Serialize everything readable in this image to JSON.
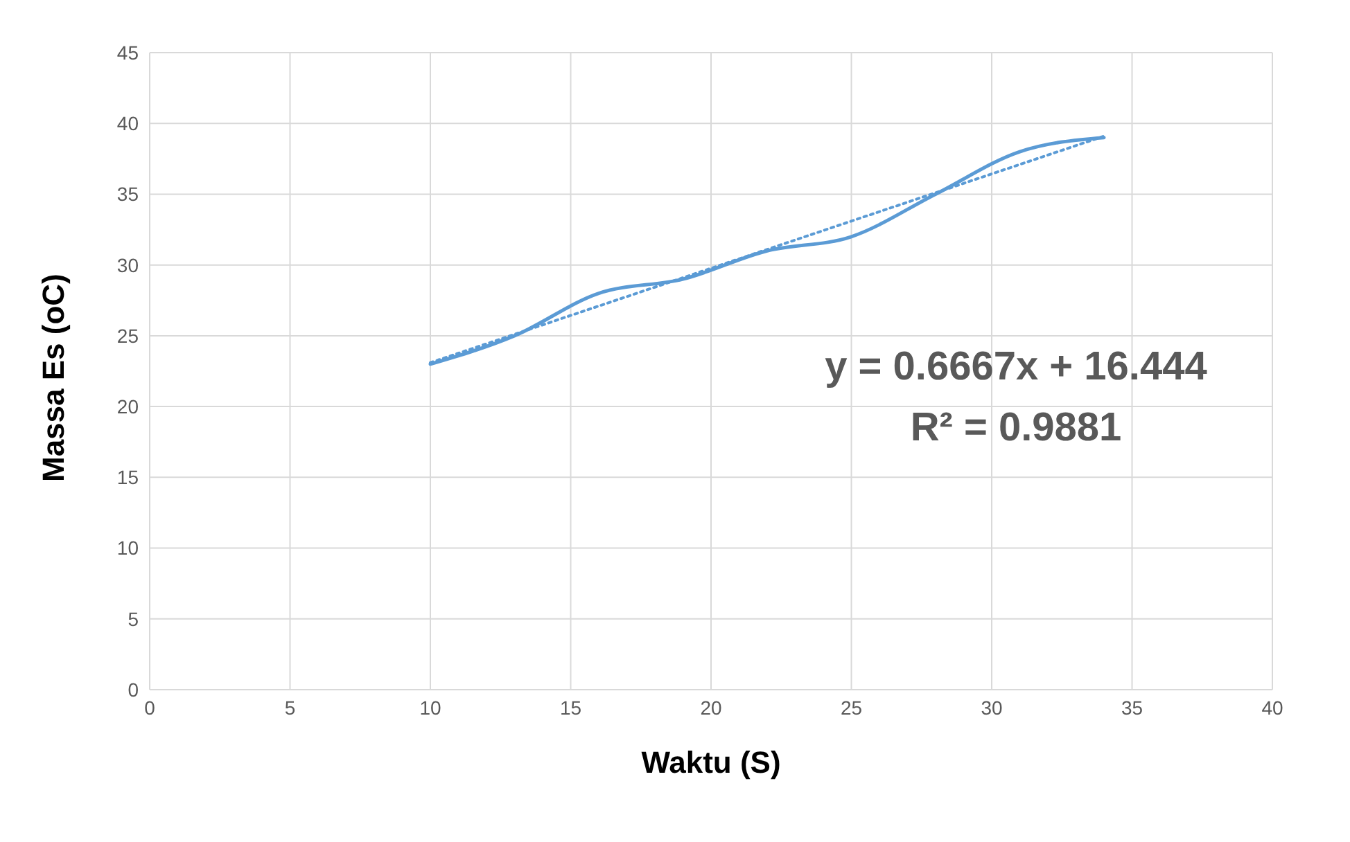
{
  "chart_data": {
    "type": "line",
    "xlabel": "Waktu (S)",
    "ylabel": "Massa Es (oC)",
    "xlim": [
      0,
      40
    ],
    "xticks": [
      0,
      5,
      10,
      15,
      20,
      25,
      30,
      35,
      40
    ],
    "ylim": [
      0,
      45
    ],
    "yticks": [
      0,
      5,
      10,
      15,
      20,
      25,
      30,
      35,
      40,
      45
    ],
    "grid": true,
    "marker": "none",
    "series": [
      {
        "color": "#5b9bd5",
        "x": [
          10,
          13,
          16,
          19,
          22,
          25,
          28,
          31,
          34
        ],
        "values": [
          23,
          25,
          28,
          29,
          31,
          32,
          35,
          38,
          39
        ],
        "line_style": "solid"
      },
      {
        "color": "#5b9bd5",
        "x": [
          10,
          34
        ],
        "values": [
          23.1,
          39.1
        ],
        "line_style": "dotted"
      }
    ],
    "annotations": [
      "y = 0.6667x + 16.444",
      "R² = 0.9881"
    ]
  }
}
